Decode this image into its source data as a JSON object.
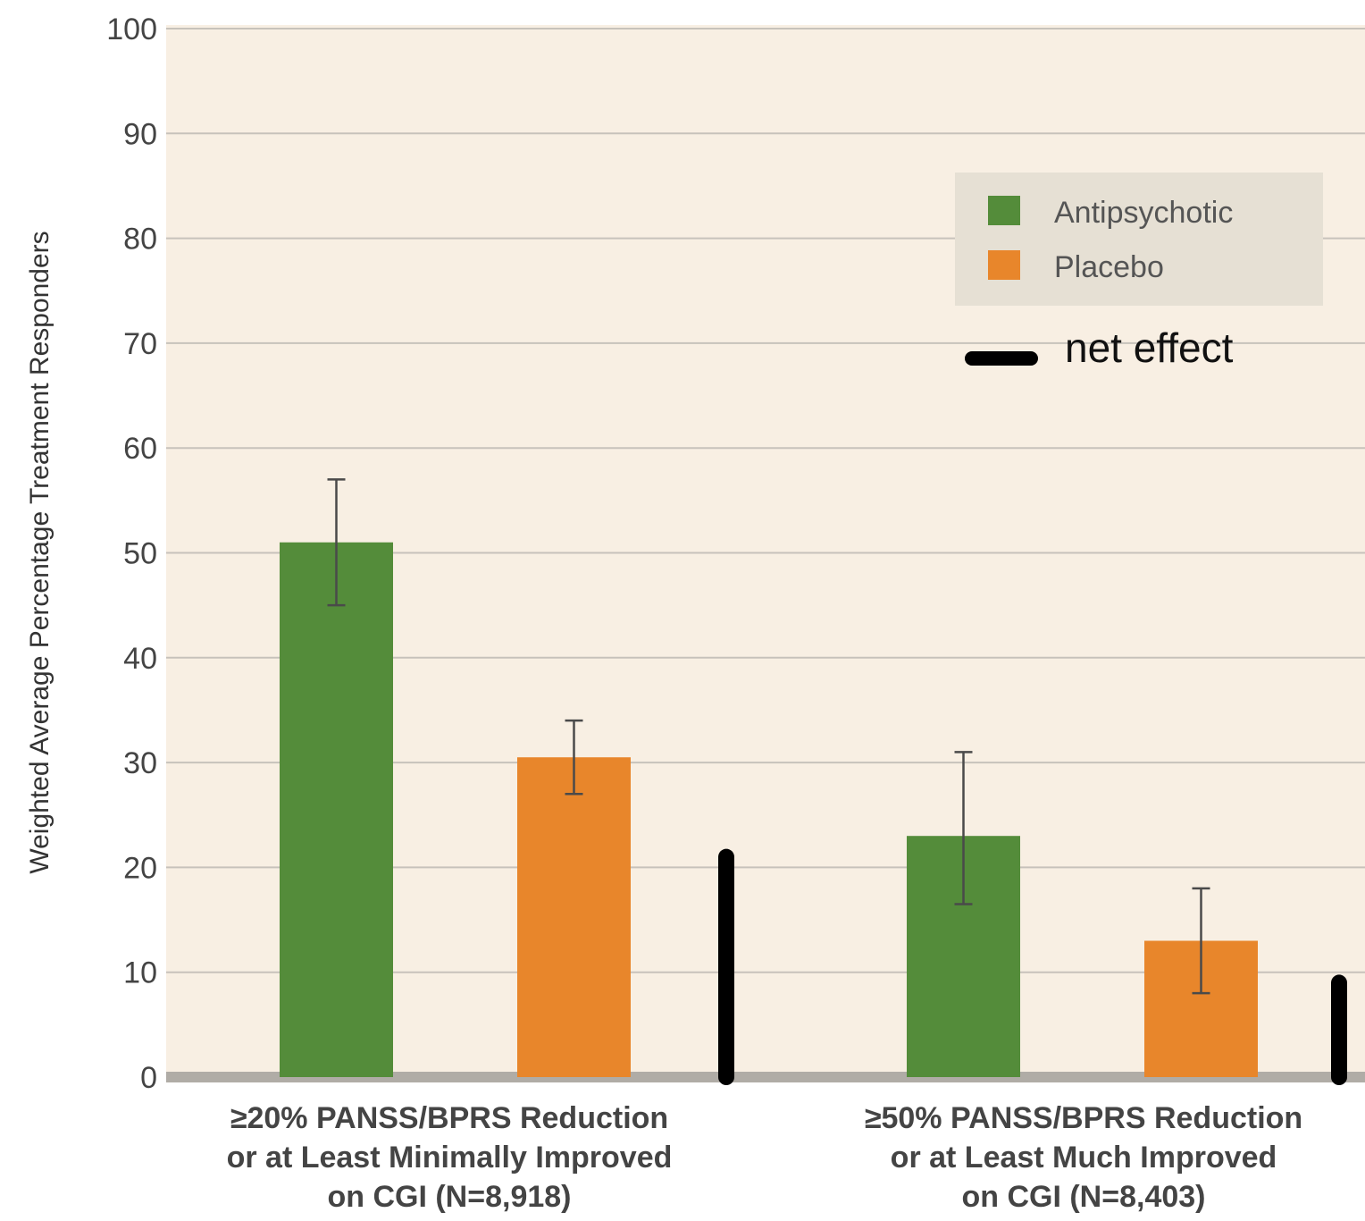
{
  "chart_data": {
    "type": "bar",
    "ylabel": "Weighted Average Percentage Treatment Responders",
    "ylim": [
      0,
      100
    ],
    "yticks": [
      "0",
      "10",
      "20",
      "30",
      "40",
      "50",
      "60",
      "70",
      "80",
      "90",
      "100"
    ],
    "grid": true,
    "legend_position": "top-right",
    "categories": [
      [
        "≥20% PANSS/BPRS Reduction",
        "or at Least Minimally Improved",
        "on CGI (N=8,918)"
      ],
      [
        "≥50% PANSS/BPRS Reduction",
        "or at Least Much Improved",
        "on CGI (N=8,403)"
      ]
    ],
    "series": [
      {
        "name": "Antipsychotic",
        "color": "#548c3a",
        "values": [
          51,
          23
        ],
        "error_low": [
          45,
          16.5
        ],
        "error_high": [
          57,
          31
        ]
      },
      {
        "name": "Placebo",
        "color": "#e8862b",
        "values": [
          30.5,
          13
        ],
        "error_low": [
          27,
          8
        ],
        "error_high": [
          34,
          18
        ]
      },
      {
        "name": "net effect",
        "color": "#000000",
        "values": [
          21,
          9
        ]
      }
    ],
    "background_color": "#f8efe3",
    "axis_color": "#b0aca6"
  }
}
